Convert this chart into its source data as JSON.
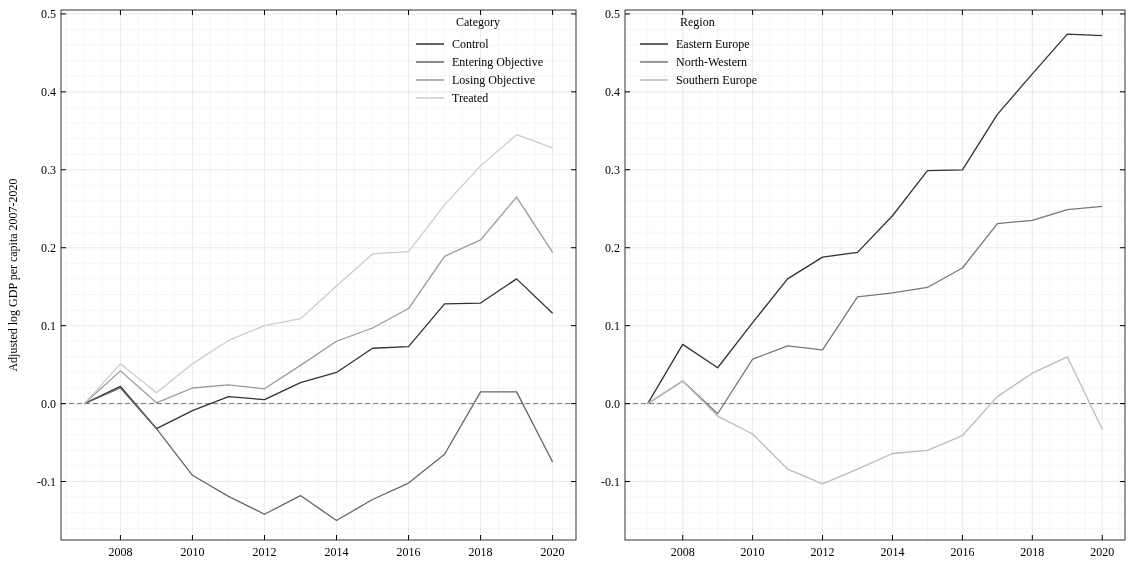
{
  "chart_data": [
    {
      "type": "line",
      "ylabel": "Adjusted log GDP per capita 2007-2020",
      "legend_title": "Category",
      "x": [
        2007,
        2008,
        2009,
        2010,
        2011,
        2012,
        2013,
        2014,
        2015,
        2016,
        2017,
        2018,
        2019,
        2020
      ],
      "series": [
        {
          "name": "Control",
          "color": "#333333",
          "values": [
            0,
            0.022,
            -0.032,
            -0.009,
            0.009,
            0.005,
            0.027,
            0.04,
            0.071,
            0.073,
            0.128,
            0.129,
            0.16,
            0.116
          ]
        },
        {
          "name": "Entering Objective",
          "color": "#666666",
          "values": [
            0,
            0.02,
            -0.032,
            -0.092,
            -0.119,
            -0.142,
            -0.118,
            -0.15,
            -0.123,
            -0.102,
            -0.065,
            0.015,
            0.015,
            -0.075
          ]
        },
        {
          "name": "Losing Objective",
          "color": "#999999",
          "values": [
            0,
            0.042,
            0.001,
            0.02,
            0.024,
            0.019,
            0.049,
            0.08,
            0.097,
            0.122,
            0.189,
            0.21,
            0.265,
            0.194
          ]
        },
        {
          "name": "Treated",
          "color": "#cccccc",
          "values": [
            0,
            0.051,
            0.014,
            0.051,
            0.081,
            0.1,
            0.109,
            0.151,
            0.192,
            0.195,
            0.255,
            0.305,
            0.345,
            0.328
          ]
        }
      ],
      "xlim": [
        2006.35,
        2020.65
      ],
      "xticks": [
        2008,
        2010,
        2012,
        2014,
        2016,
        2018,
        2020
      ],
      "ylim": [
        -0.175,
        0.505
      ],
      "yticks": [
        -0.1,
        {
          "value": 0,
          "label": "0.0"
        },
        0.1,
        0.2,
        0.3,
        0.4,
        0.5
      ],
      "ref_lines": [
        {
          "axis": "y",
          "value": 0,
          "color": "#777777",
          "line_style": "dashed"
        }
      ],
      "grid": true,
      "legend": "top right"
    },
    {
      "type": "line",
      "legend_title": "Region",
      "x": [
        2007,
        2008,
        2009,
        2010,
        2011,
        2012,
        2013,
        2014,
        2015,
        2016,
        2017,
        2018,
        2019,
        2020
      ],
      "series": [
        {
          "name": "Eastern Europe",
          "color": "#333333",
          "values": [
            0,
            0.076,
            0.046,
            0.104,
            0.16,
            0.188,
            0.194,
            0.241,
            0.299,
            0.3,
            0.371,
            0.423,
            0.474,
            0.472
          ]
        },
        {
          "name": "North-Western",
          "color": "#777777",
          "values": [
            0,
            0.029,
            -0.013,
            0.057,
            0.074,
            0.069,
            0.137,
            0.142,
            0.149,
            0.174,
            0.231,
            0.235,
            0.249,
            0.253
          ]
        },
        {
          "name": "Southern Europe",
          "color": "#bbbbbb",
          "values": [
            0,
            0.029,
            -0.016,
            -0.039,
            -0.084,
            -0.103,
            -0.084,
            -0.064,
            -0.06,
            -0.041,
            0.009,
            0.039,
            0.06,
            -0.033
          ]
        }
      ],
      "xlim": [
        2006.35,
        2020.65
      ],
      "xticks": [
        2008,
        2010,
        2012,
        2014,
        2016,
        2018,
        2020
      ],
      "ylim": [
        -0.175,
        0.505
      ],
      "yticks": [
        -0.1,
        {
          "value": 0,
          "label": "0.0"
        },
        0.1,
        0.2,
        0.3,
        0.4,
        0.5
      ],
      "ref_lines": [
        {
          "axis": "y",
          "value": 0,
          "color": "#777777",
          "line_style": "dashed"
        }
      ],
      "grid": true,
      "legend": "top left"
    }
  ]
}
